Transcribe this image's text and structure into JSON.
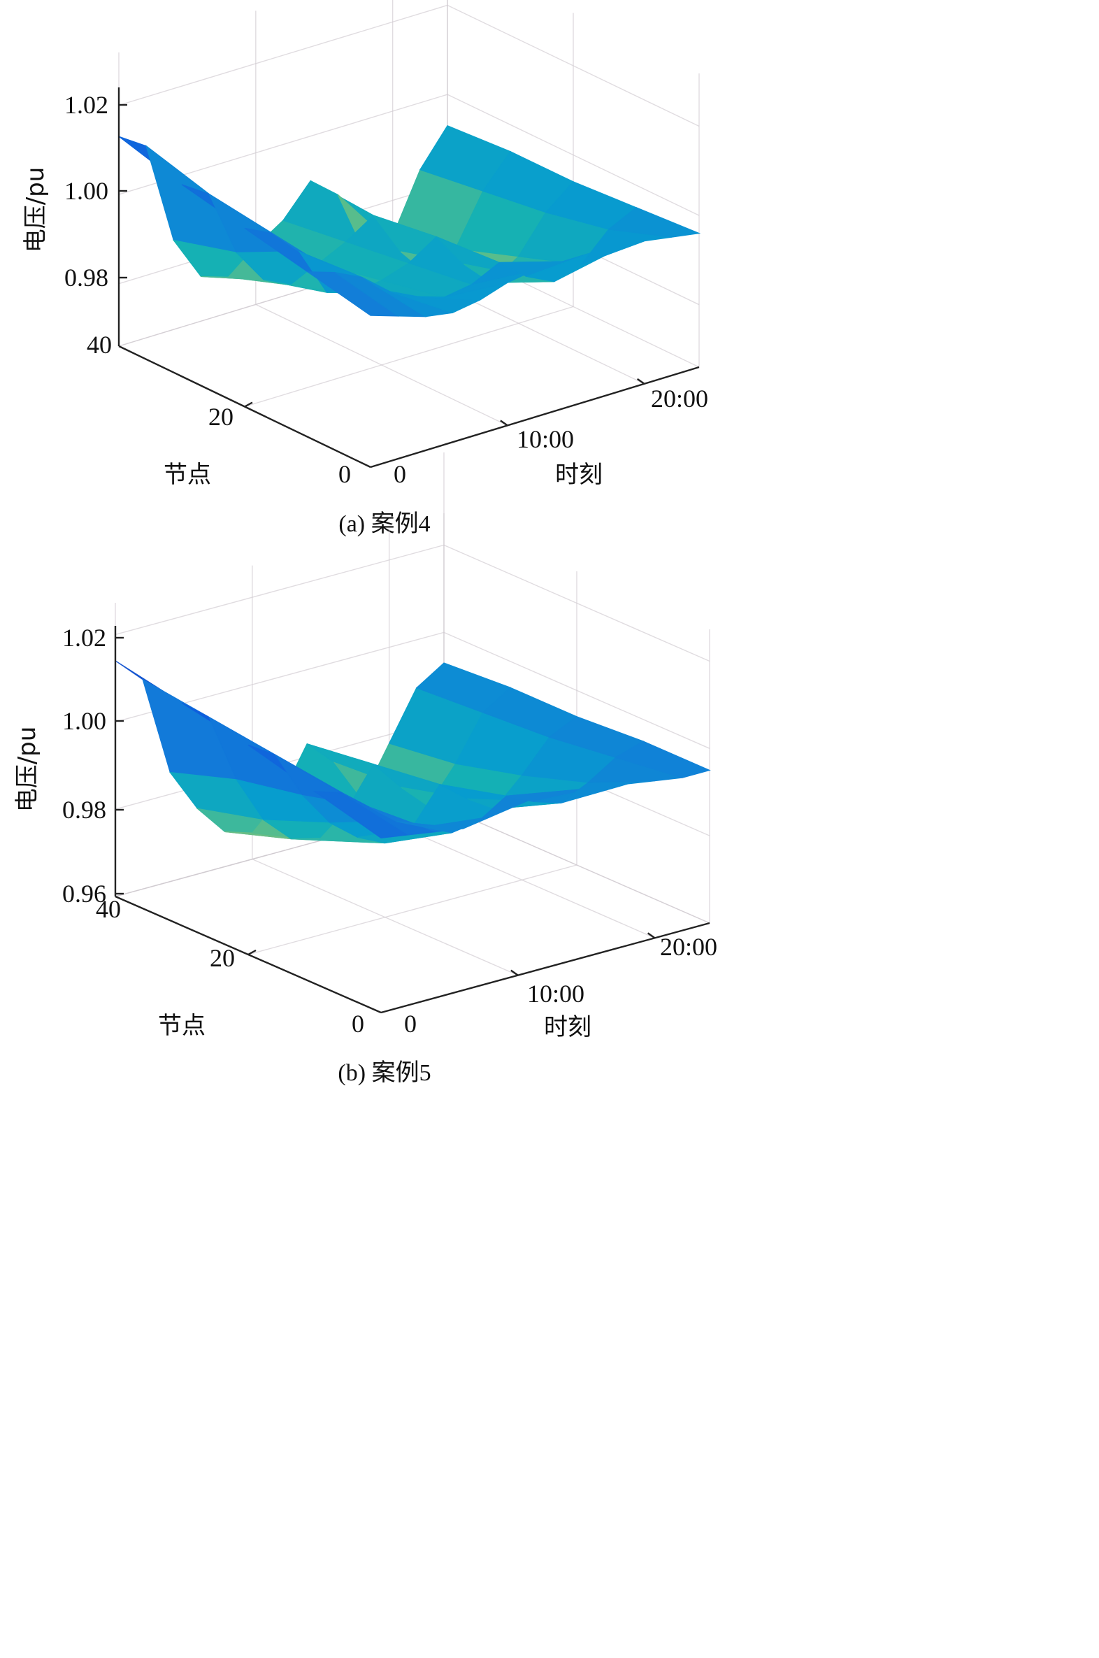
{
  "charts": [
    {
      "id": "a",
      "caption": "(a) 案例4",
      "zlabel": "电压/pu",
      "xlabel": "节点",
      "ylabel": "时刻",
      "z_ticks": [
        "1.02",
        "1.00",
        "0.98"
      ],
      "z_tick_values": [
        1.02,
        1.0,
        0.98
      ],
      "node_ticks": [
        "40",
        "20",
        "0"
      ],
      "node_tick_values": [
        40,
        20,
        0
      ],
      "time_ticks": [
        "0",
        "10:00",
        "20:00"
      ],
      "time_tick_values": [
        0,
        10,
        20
      ]
    },
    {
      "id": "b",
      "caption": "(b) 案例5",
      "zlabel": "电压/pu",
      "xlabel": "节点",
      "ylabel": "时刻",
      "z_ticks": [
        "1.02",
        "1.00",
        "0.98",
        "0.96"
      ],
      "z_tick_values": [
        1.02,
        1.0,
        0.98,
        0.96
      ],
      "node_ticks": [
        "40",
        "20",
        "0"
      ],
      "node_tick_values": [
        40,
        20,
        0
      ],
      "time_ticks": [
        "0",
        "10:00",
        "20:00"
      ],
      "time_tick_values": [
        0,
        10,
        20
      ]
    }
  ],
  "chart_data": [
    {
      "type": "surface",
      "title": "(a) 案例4",
      "xlabel": "节点",
      "ylabel": "时刻",
      "zlabel": "电压/pu",
      "zlim": [
        0.966,
        1.024
      ],
      "colormap": "parula",
      "nodes": [
        0,
        10,
        20,
        30,
        40
      ],
      "times": [
        0,
        2,
        4,
        6,
        8,
        10,
        12,
        14,
        16,
        18,
        20,
        22,
        24
      ],
      "z": [
        [
          1.0,
          0.998,
          0.996,
          0.995,
          0.996,
          0.998,
          0.999,
          0.999,
          0.999,
          0.998,
          0.998,
          0.997,
          0.996
        ],
        [
          1.003,
          1.001,
          0.998,
          0.993,
          0.99,
          0.988,
          0.989,
          0.992,
          0.987,
          0.984,
          0.986,
          0.992,
          0.995
        ],
        [
          1.006,
          1.003,
          0.997,
          0.986,
          0.984,
          0.985,
          0.987,
          0.991,
          0.983,
          0.977,
          0.981,
          0.989,
          0.994
        ],
        [
          1.009,
          1.005,
          0.99,
          0.982,
          0.979,
          0.982,
          0.985,
          0.989,
          0.979,
          0.972,
          0.976,
          0.987,
          0.994
        ],
        [
          1.013,
          1.009,
          0.986,
          0.976,
          0.974,
          0.979,
          0.983,
          0.99,
          0.985,
          0.97,
          0.972,
          0.985,
          0.993
        ]
      ]
    },
    {
      "type": "surface",
      "title": "(b) 案例5",
      "xlabel": "节点",
      "ylabel": "时刻",
      "zlabel": "电压/pu",
      "zlim": [
        0.96,
        1.02
      ],
      "colormap": "parula",
      "nodes": [
        0,
        10,
        20,
        30,
        40
      ],
      "times": [
        0,
        2,
        4,
        6,
        8,
        10,
        12,
        14,
        16,
        18,
        20,
        22,
        24
      ],
      "z": [
        [
          1.0,
          0.999,
          0.998,
          0.997,
          0.998,
          0.999,
          1.0,
          0.999,
          0.998,
          0.997,
          0.996,
          0.995,
          0.995
        ],
        [
          1.004,
          1.002,
          0.997,
          0.992,
          0.989,
          0.986,
          0.987,
          0.991,
          0.988,
          0.986,
          0.989,
          0.993,
          0.995
        ],
        [
          1.008,
          1.004,
          0.993,
          0.985,
          0.98,
          0.977,
          0.979,
          0.987,
          0.982,
          0.978,
          0.984,
          0.991,
          0.994
        ],
        [
          1.011,
          1.006,
          0.99,
          0.979,
          0.973,
          0.971,
          0.976,
          0.985,
          0.978,
          0.972,
          0.98,
          0.99,
          0.994
        ],
        [
          1.014,
          1.008,
          0.985,
          0.975,
          0.968,
          0.966,
          0.972,
          0.983,
          0.977,
          0.967,
          0.978,
          0.989,
          0.993
        ]
      ]
    }
  ]
}
